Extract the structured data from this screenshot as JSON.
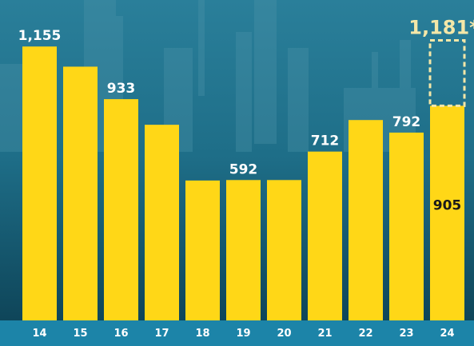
{
  "chart_data": {
    "type": "bar",
    "categories": [
      "14",
      "15",
      "16",
      "17",
      "18",
      "19",
      "20",
      "21",
      "22",
      "23",
      "24"
    ],
    "values": [
      1155,
      1070,
      933,
      825,
      590,
      592,
      592,
      712,
      845,
      792,
      905
    ],
    "labels": [
      "1,155",
      "",
      "933",
      "",
      "",
      "592",
      "",
      "712",
      "",
      "792",
      "905"
    ],
    "projection": {
      "category": "24",
      "value": 1181,
      "label": "1,181*"
    },
    "ylim": [
      0,
      1250
    ],
    "colors": {
      "bar": "#ffd717",
      "projection_outline": "#f4e7a8",
      "axis_band": "#1c84a8",
      "background": "#0f4a5f"
    }
  }
}
